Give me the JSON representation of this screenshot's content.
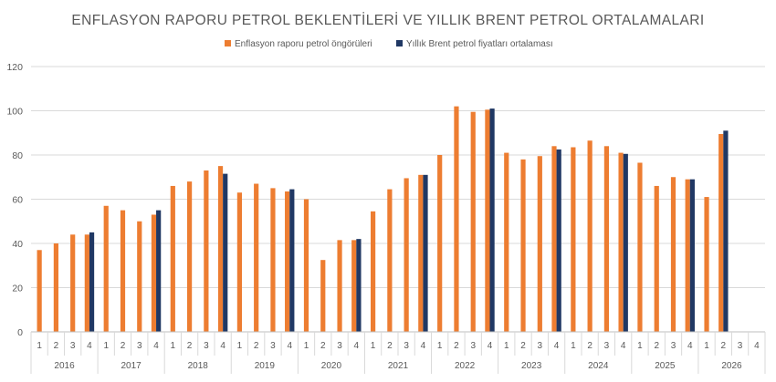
{
  "chart_data": {
    "type": "bar",
    "title": "ENFLASYON RAPORU PETROL BEKLENTİLERİ VE YILLIK BRENT PETROL ORTALAMALARI",
    "xlabel": "",
    "ylabel": "",
    "ylim": [
      0,
      120
    ],
    "yticks": [
      0,
      20,
      40,
      60,
      80,
      100,
      120
    ],
    "grid": true,
    "legend_position": "top",
    "years": [
      "2016",
      "2017",
      "2018",
      "2019",
      "2020",
      "2021",
      "2022",
      "2023",
      "2024",
      "2025",
      "2026"
    ],
    "quarters": [
      "1",
      "2",
      "3",
      "4"
    ],
    "series": [
      {
        "name": "Enflasyon raporu petrol öngörüleri",
        "color": "#ED7D31",
        "values": [
          37,
          40,
          44,
          44,
          57,
          55,
          50,
          53,
          66,
          68,
          73,
          75,
          63,
          67,
          65,
          63.5,
          60,
          32.5,
          41.5,
          41.5,
          54.5,
          64.5,
          69.5,
          71,
          80,
          102,
          99.5,
          100.5,
          81,
          78,
          79.5,
          84,
          83.5,
          86.5,
          84,
          81,
          76.5,
          66,
          70,
          69,
          61,
          89.5,
          null,
          null
        ]
      },
      {
        "name": "Yıllık Brent petrol fiyatları ortalaması",
        "color": "#203864",
        "values": [
          null,
          null,
          null,
          45,
          null,
          null,
          null,
          55,
          null,
          null,
          null,
          71.5,
          null,
          null,
          null,
          64.5,
          null,
          null,
          null,
          42,
          null,
          null,
          null,
          71,
          null,
          null,
          null,
          101,
          null,
          null,
          null,
          82.5,
          null,
          null,
          null,
          80.5,
          null,
          null,
          null,
          69,
          null,
          91,
          null,
          null
        ]
      }
    ]
  }
}
